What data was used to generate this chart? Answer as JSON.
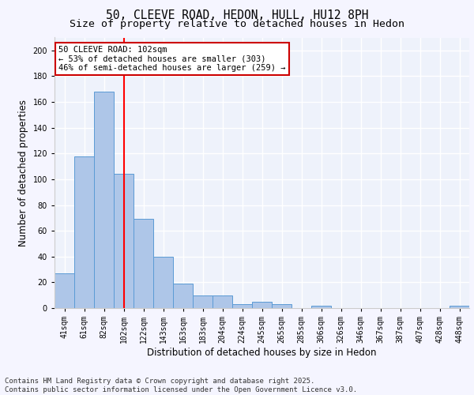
{
  "title_line1": "50, CLEEVE ROAD, HEDON, HULL, HU12 8PH",
  "title_line2": "Size of property relative to detached houses in Hedon",
  "xlabel": "Distribution of detached houses by size in Hedon",
  "ylabel": "Number of detached properties",
  "categories": [
    "41sqm",
    "61sqm",
    "82sqm",
    "102sqm",
    "122sqm",
    "143sqm",
    "163sqm",
    "183sqm",
    "204sqm",
    "224sqm",
    "245sqm",
    "265sqm",
    "285sqm",
    "306sqm",
    "326sqm",
    "346sqm",
    "367sqm",
    "387sqm",
    "407sqm",
    "428sqm",
    "448sqm"
  ],
  "values": [
    27,
    118,
    168,
    104,
    69,
    40,
    19,
    10,
    10,
    3,
    5,
    3,
    0,
    2,
    0,
    0,
    0,
    0,
    0,
    0,
    2
  ],
  "bar_color": "#aec6e8",
  "bar_edge_color": "#5b9bd5",
  "red_line_x": 3.0,
  "ylim": [
    0,
    210
  ],
  "yticks": [
    0,
    20,
    40,
    60,
    80,
    100,
    120,
    140,
    160,
    180,
    200
  ],
  "annotation_text": "50 CLEEVE ROAD: 102sqm\n← 53% of detached houses are smaller (303)\n46% of semi-detached houses are larger (259) →",
  "annotation_box_color": "#ffffff",
  "annotation_box_edgecolor": "#cc0000",
  "footer_text": "Contains HM Land Registry data © Crown copyright and database right 2025.\nContains public sector information licensed under the Open Government Licence v3.0.",
  "background_color": "#eef2fb",
  "grid_color": "#ffffff",
  "title_fontsize": 10.5,
  "subtitle_fontsize": 9.5,
  "tick_fontsize": 7,
  "ylabel_fontsize": 8.5,
  "xlabel_fontsize": 8.5,
  "footer_fontsize": 6.5,
  "ann_fontsize": 7.5
}
